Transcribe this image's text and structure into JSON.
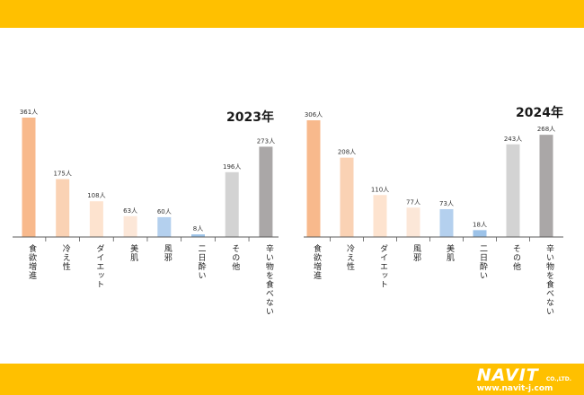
{
  "colors": {
    "band": "#FFC000",
    "axis": "#595959"
  },
  "footer": {
    "logo_main": "NAVIT",
    "logo_sub": "CO.,LTD.",
    "logo_url": "www.navit-j.com"
  },
  "chart_data": [
    {
      "type": "bar",
      "title": "2023年",
      "categories": [
        "食欲増進",
        "冷え性",
        "ダイエット",
        "美肌",
        "風邪",
        "二日酔い",
        "その他",
        "辛い物を食べない"
      ],
      "values": [
        361,
        175,
        108,
        63,
        60,
        8,
        196,
        273
      ],
      "data_labels": [
        "361人",
        "175人",
        "108人",
        "63人",
        "60人",
        "8人",
        "196人",
        "273人"
      ],
      "colors": [
        "#F8B98C",
        "#FAD2B4",
        "#FDE3CF",
        "#FCE7D8",
        "#B4D0EE",
        "#9CC2E8",
        "#D3D3D3",
        "#AAA7A7"
      ],
      "ylim": [
        0,
        361
      ],
      "grid": false
    },
    {
      "type": "bar",
      "title": "2024年",
      "categories": [
        "食欲増進",
        "冷え性",
        "ダイエット",
        "風邪",
        "美肌",
        "二日酔い",
        "その他",
        "辛い物を食べない"
      ],
      "values": [
        306,
        208,
        110,
        77,
        73,
        18,
        243,
        268
      ],
      "data_labels": [
        "306人",
        "208人",
        "110人",
        "77人",
        "73人",
        "18人",
        "243人",
        "268人"
      ],
      "colors": [
        "#F8B98C",
        "#FAD2B4",
        "#FDE3CF",
        "#FCE7D8",
        "#B4D0EE",
        "#9CC2E8",
        "#D3D3D3",
        "#AAA7A7"
      ],
      "ylim": [
        0,
        306
      ],
      "grid": false
    }
  ]
}
